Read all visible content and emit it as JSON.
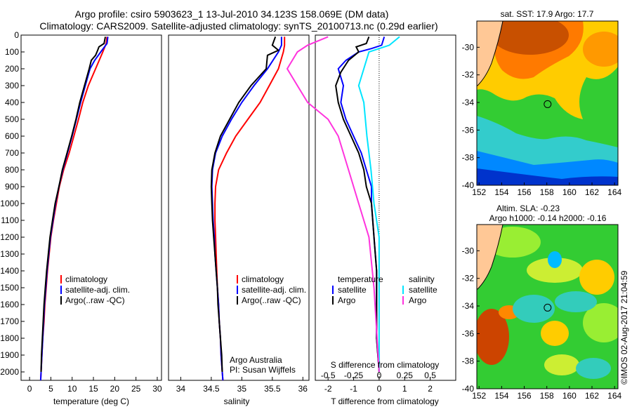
{
  "header": {
    "title_line1": "Argo profile: csiro 5903623_1 13-Jul-2010 34.123S 158.069E (DM data)",
    "title_line2": "Climatology: CARS2009. Satellite-adjusted climatology: synTS_20100713.nc (0.29d earlier)"
  },
  "colors": {
    "climatology": "#ff0000",
    "satellite": "#0000ff",
    "argo": "#000000",
    "salinity_satellite": "#00e5ff",
    "salinity_argo": "#ff33dd"
  },
  "watermark": "©IMOS 02-Aug-2017 21:04:59",
  "chart_data": [
    {
      "type": "line",
      "id": "temperature",
      "xlabel": "temperature (deg C)",
      "xlim": [
        -2,
        31
      ],
      "xticks": [
        0,
        5,
        10,
        15,
        20,
        25,
        30
      ],
      "ylim": [
        0,
        2050
      ],
      "yticks": [
        0,
        100,
        200,
        300,
        400,
        500,
        600,
        700,
        800,
        900,
        1000,
        1100,
        1200,
        1300,
        1400,
        1500,
        1600,
        1700,
        1800,
        1900,
        2000
      ],
      "legend": [
        "climatology",
        "satellite-adj. clim.",
        "Argo(..raw -QC)"
      ],
      "legend_position": "lower-right",
      "series": [
        {
          "name": "climatology",
          "color": "#ff0000",
          "points": [
            [
              18.2,
              10
            ],
            [
              18.0,
              50
            ],
            [
              17.2,
              100
            ],
            [
              15.5,
              200
            ],
            [
              13.8,
              300
            ],
            [
              12.5,
              400
            ],
            [
              11.5,
              500
            ],
            [
              10.4,
              600
            ],
            [
              9.3,
              700
            ],
            [
              8.0,
              800
            ],
            [
              7.0,
              900
            ],
            [
              6.3,
              1000
            ],
            [
              5.6,
              1100
            ],
            [
              5.0,
              1200
            ],
            [
              4.6,
              1300
            ],
            [
              4.2,
              1400
            ],
            [
              3.9,
              1500
            ],
            [
              3.6,
              1600
            ],
            [
              3.4,
              1700
            ],
            [
              3.1,
              1800
            ],
            [
              2.9,
              1900
            ],
            [
              2.7,
              2000
            ],
            [
              2.6,
              2050
            ]
          ]
        },
        {
          "name": "satellite-adj. clim.",
          "color": "#0000ff",
          "points": [
            [
              18.4,
              10
            ],
            [
              18.2,
              50
            ],
            [
              17.0,
              90
            ],
            [
              15.3,
              150
            ],
            [
              14.2,
              200
            ],
            [
              13.1,
              300
            ],
            [
              12.0,
              400
            ],
            [
              11.0,
              500
            ],
            [
              10.0,
              600
            ],
            [
              8.9,
              700
            ],
            [
              7.8,
              800
            ],
            [
              6.9,
              900
            ],
            [
              6.1,
              1000
            ],
            [
              5.5,
              1100
            ],
            [
              4.9,
              1200
            ],
            [
              4.5,
              1300
            ],
            [
              4.1,
              1400
            ],
            [
              3.8,
              1500
            ],
            [
              3.5,
              1600
            ],
            [
              3.3,
              1700
            ],
            [
              3.1,
              1800
            ],
            [
              2.9,
              1900
            ],
            [
              2.7,
              2000
            ],
            [
              2.6,
              2050
            ]
          ]
        },
        {
          "name": "Argo(..raw -QC)",
          "color": "#000000",
          "points": [
            [
              17.8,
              10
            ],
            [
              17.5,
              50
            ],
            [
              16.3,
              70
            ],
            [
              16.0,
              90
            ],
            [
              15.5,
              120
            ],
            [
              14.5,
              150
            ],
            [
              14.0,
              200
            ],
            [
              12.9,
              300
            ],
            [
              11.8,
              400
            ],
            [
              10.9,
              500
            ],
            [
              9.9,
              600
            ],
            [
              8.8,
              700
            ],
            [
              7.7,
              800
            ],
            [
              6.9,
              900
            ],
            [
              6.0,
              1000
            ],
            [
              5.4,
              1100
            ],
            [
              4.8,
              1200
            ],
            [
              4.4,
              1300
            ],
            [
              4.0,
              1400
            ],
            [
              3.7,
              1500
            ],
            [
              3.4,
              1600
            ],
            [
              3.2,
              1700
            ],
            [
              3.0,
              1800
            ],
            [
              2.8,
              1900
            ],
            [
              2.7,
              2000
            ]
          ]
        }
      ]
    },
    {
      "type": "line",
      "id": "salinity",
      "xlabel": "salinity",
      "xlim": [
        33.8,
        36.1
      ],
      "xticks": [
        34,
        34.5,
        35,
        35.5,
        36
      ],
      "legend": [
        "climatology",
        "satellite-adj. clim.",
        "Argo(..raw -QC)"
      ],
      "legend_position": "lower-right",
      "annotation": [
        "Argo Australia",
        "PI: Susan Wijffels"
      ],
      "series": [
        {
          "name": "climatology",
          "color": "#ff0000",
          "points": [
            [
              35.7,
              10
            ],
            [
              35.7,
              60
            ],
            [
              35.68,
              100
            ],
            [
              35.6,
              200
            ],
            [
              35.45,
              300
            ],
            [
              35.3,
              400
            ],
            [
              35.1,
              500
            ],
            [
              34.9,
              600
            ],
            [
              34.75,
              700
            ],
            [
              34.62,
              800
            ],
            [
              34.57,
              900
            ],
            [
              34.56,
              1000
            ],
            [
              34.56,
              1100
            ],
            [
              34.57,
              1200
            ],
            [
              34.58,
              1300
            ],
            [
              34.59,
              1400
            ],
            [
              34.6,
              1500
            ],
            [
              34.62,
              1600
            ],
            [
              34.63,
              1700
            ],
            [
              34.65,
              1800
            ],
            [
              34.66,
              1900
            ],
            [
              34.68,
              2000
            ],
            [
              34.69,
              2050
            ]
          ]
        },
        {
          "name": "satellite-adj. clim.",
          "color": "#0000ff",
          "points": [
            [
              35.65,
              10
            ],
            [
              35.65,
              60
            ],
            [
              35.6,
              100
            ],
            [
              35.42,
              200
            ],
            [
              35.2,
              300
            ],
            [
              35.0,
              400
            ],
            [
              34.83,
              500
            ],
            [
              34.68,
              600
            ],
            [
              34.57,
              700
            ],
            [
              34.52,
              800
            ],
            [
              34.51,
              900
            ],
            [
              34.52,
              1000
            ],
            [
              34.53,
              1100
            ],
            [
              34.55,
              1200
            ],
            [
              34.56,
              1300
            ],
            [
              34.58,
              1400
            ],
            [
              34.6,
              1500
            ],
            [
              34.62,
              1600
            ],
            [
              34.63,
              1700
            ],
            [
              34.65,
              1800
            ],
            [
              34.66,
              1900
            ],
            [
              34.68,
              2000
            ],
            [
              34.69,
              2050
            ]
          ]
        },
        {
          "name": "Argo(..raw -QC)",
          "color": "#000000",
          "points": [
            [
              35.55,
              10
            ],
            [
              35.5,
              60
            ],
            [
              35.6,
              90
            ],
            [
              35.42,
              120
            ],
            [
              35.4,
              200
            ],
            [
              35.15,
              300
            ],
            [
              34.95,
              400
            ],
            [
              34.8,
              500
            ],
            [
              34.65,
              600
            ],
            [
              34.56,
              700
            ],
            [
              34.51,
              800
            ],
            [
              34.5,
              900
            ],
            [
              34.51,
              1000
            ],
            [
              34.52,
              1100
            ],
            [
              34.54,
              1200
            ],
            [
              34.56,
              1300
            ],
            [
              34.58,
              1400
            ],
            [
              34.6,
              1500
            ],
            [
              34.61,
              1600
            ],
            [
              34.63,
              1700
            ],
            [
              34.65,
              1800
            ],
            [
              34.67,
              1900
            ],
            [
              34.68,
              2000
            ]
          ]
        }
      ]
    },
    {
      "type": "line",
      "id": "differences",
      "xlabel": "T difference from climatology",
      "xlim": [
        -2.5,
        3.0
      ],
      "xticks": [
        -2,
        -1,
        0,
        1,
        2
      ],
      "secondary_xlabel": "S difference from climatology",
      "secondary_xticks": [
        "-0.5",
        "-0.25",
        "0",
        "0.25",
        "0.5"
      ],
      "legend_headers": [
        "temperature",
        "salinity"
      ],
      "legend": [
        "satellite",
        "Argo",
        "satellite",
        "Argo"
      ],
      "legend_position": "lower-center",
      "series": [
        {
          "name": "satellite",
          "group": "temperature",
          "color": "#0000ff",
          "points": [
            [
              0.2,
              10
            ],
            [
              0.1,
              60
            ],
            [
              -0.3,
              80
            ],
            [
              -0.8,
              100
            ],
            [
              -1.3,
              150
            ],
            [
              -1.6,
              200
            ],
            [
              -1.4,
              300
            ],
            [
              -1.5,
              400
            ],
            [
              -1.3,
              500
            ],
            [
              -1.0,
              600
            ],
            [
              -0.7,
              700
            ],
            [
              -0.5,
              800
            ],
            [
              -0.3,
              900
            ],
            [
              -0.3,
              1000
            ],
            [
              -0.2,
              1200
            ],
            [
              -0.1,
              1400
            ],
            [
              -0.1,
              1600
            ],
            [
              -0.1,
              1800
            ],
            [
              0.0,
              2000
            ]
          ]
        },
        {
          "name": "Argo",
          "group": "temperature",
          "color": "#000000",
          "points": [
            [
              -0.4,
              10
            ],
            [
              -0.5,
              50
            ],
            [
              -0.9,
              70
            ],
            [
              -0.8,
              100
            ],
            [
              -1.2,
              150
            ],
            [
              -1.5,
              220
            ],
            [
              -1.7,
              300
            ],
            [
              -1.6,
              400
            ],
            [
              -1.4,
              500
            ],
            [
              -1.1,
              600
            ],
            [
              -0.8,
              700
            ],
            [
              -0.6,
              800
            ],
            [
              -0.5,
              900
            ],
            [
              -0.3,
              1000
            ],
            [
              -0.2,
              1200
            ],
            [
              -0.1,
              1400
            ],
            [
              -0.1,
              1600
            ],
            [
              -0.1,
              1800
            ],
            [
              0.0,
              2000
            ]
          ]
        },
        {
          "name": "satellite",
          "group": "salinity",
          "color": "#00e5ff",
          "points": [
            [
              0.2,
              10
            ],
            [
              0.1,
              60
            ],
            [
              -0.1,
              100
            ],
            [
              -0.15,
              200
            ],
            [
              -0.2,
              300
            ],
            [
              -0.15,
              400
            ],
            [
              -0.12,
              600
            ],
            [
              -0.08,
              800
            ],
            [
              -0.05,
              1000
            ],
            [
              0.0,
              1200
            ],
            [
              0.0,
              1500
            ],
            [
              0.0,
              2000
            ]
          ]
        },
        {
          "name": "Argo",
          "group": "salinity",
          "color": "#ff33dd",
          "points": [
            [
              -0.5,
              10
            ],
            [
              -0.7,
              60
            ],
            [
              -0.8,
              100
            ],
            [
              -0.9,
              200
            ],
            [
              -0.8,
              300
            ],
            [
              -0.7,
              400
            ],
            [
              -0.5,
              500
            ],
            [
              -0.4,
              600
            ],
            [
              -0.3,
              800
            ],
            [
              -0.2,
              1000
            ],
            [
              -0.1,
              1200
            ],
            [
              -0.05,
              1500
            ],
            [
              0.0,
              2000
            ]
          ]
        }
      ]
    },
    {
      "type": "heatmap",
      "id": "sst_map",
      "title": "sat. SST: 17.9 Argo: 17.7",
      "xticks": [
        152,
        154,
        156,
        158,
        160,
        162,
        164
      ],
      "yticks": [
        -30,
        -32,
        -34,
        -36,
        -38,
        -40
      ],
      "xlim": [
        151.8,
        164.3
      ],
      "ylim": [
        -40,
        -28.1
      ],
      "marker": [
        158.069,
        -34.123
      ]
    },
    {
      "type": "heatmap",
      "id": "sla_map",
      "title": [
        "Altim. SLA: -0.23",
        "Argo h1000: -0.14 h2000: -0.16"
      ],
      "xticks": [
        152,
        154,
        156,
        158,
        160,
        162,
        164
      ],
      "yticks": [
        -30,
        -32,
        -34,
        -36,
        -38,
        -40
      ],
      "xlim": [
        151.8,
        164.3
      ],
      "ylim": [
        -40,
        -28.1
      ],
      "marker": [
        158.069,
        -34.123
      ]
    }
  ]
}
